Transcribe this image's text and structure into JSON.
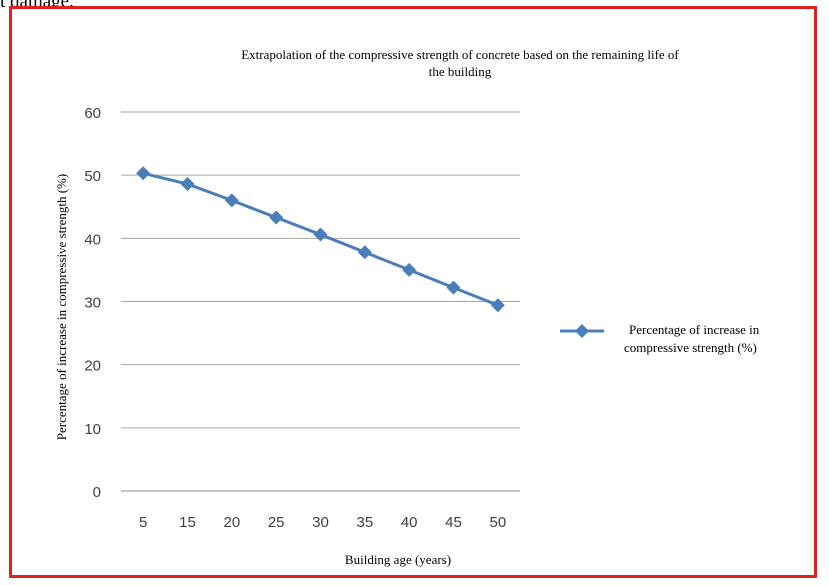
{
  "page": {
    "top_text": "t damage."
  },
  "chart_data": {
    "type": "line",
    "title_line1": "Extrapolation of the compressive strength of concrete based on the remaining life of",
    "title_line2": "the building",
    "xlabel": "Building age (years)",
    "ylabel": "Percentage of increase in compressive strength (%)",
    "categories": [
      "5",
      "15",
      "20",
      "25",
      "30",
      "35",
      "40",
      "45",
      "50"
    ],
    "ylim": [
      0,
      60
    ],
    "yticks": [
      0,
      10,
      20,
      30,
      40,
      50,
      60
    ],
    "grid": true,
    "legend_position": "right",
    "series": [
      {
        "name_line1": "Percentage of increase in",
        "name_line2": "compressive strength (%)",
        "values": [
          50.3,
          48.6,
          46.0,
          43.3,
          40.6,
          37.8,
          35.0,
          32.2,
          29.4
        ],
        "color": "#4a7ebb",
        "marker": "diamond"
      }
    ]
  }
}
